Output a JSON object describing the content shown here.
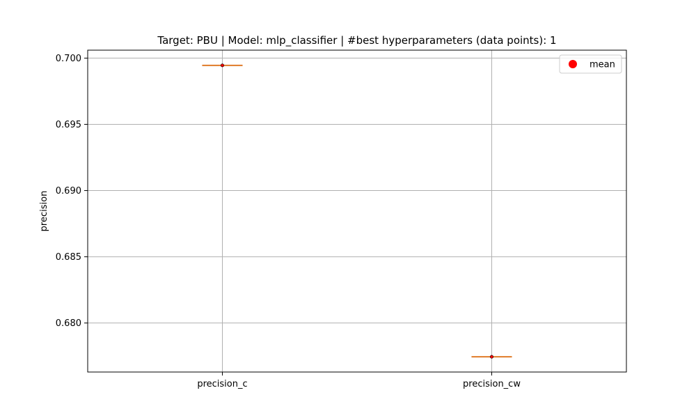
{
  "chart_data": {
    "type": "box",
    "title": "Target: PBU | Model: mlp_classifier | #best hyperparameters (data points): 1",
    "xlabel": "",
    "ylabel": "precision",
    "categories": [
      "precision_c",
      "precision_cw"
    ],
    "values": [
      0.69945,
      0.67745
    ],
    "means": [
      0.69945,
      0.67745
    ],
    "ylim": [
      0.6763,
      0.7006
    ],
    "yticks": [
      0.68,
      0.685,
      0.69,
      0.695,
      0.7
    ],
    "ytick_labels": [
      "0.680",
      "0.685",
      "0.690",
      "0.695",
      "0.700"
    ],
    "grid": true,
    "legend": {
      "placement": "top-right",
      "entries": [
        {
          "label": "mean",
          "color": "#ff0000",
          "marker": "circle"
        }
      ]
    },
    "colors": {
      "median": "#e07b28",
      "box": "#000000",
      "mean": "#ff0000",
      "grid": "#b0b0b0"
    }
  }
}
